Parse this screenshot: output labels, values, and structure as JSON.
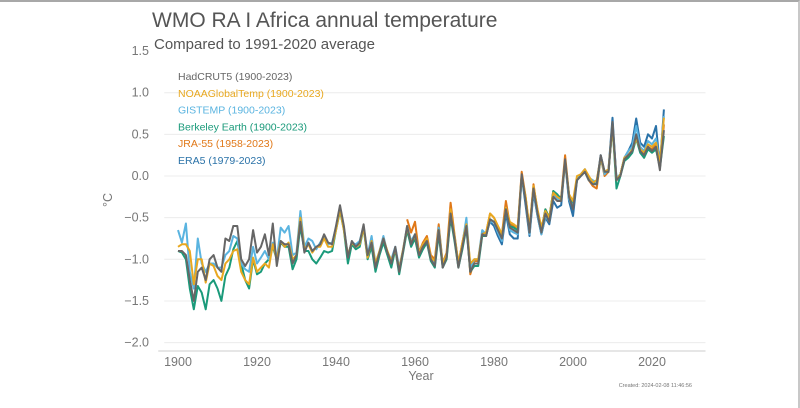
{
  "chart_data": {
    "type": "line",
    "title": "WMO RA I Africa annual temperature",
    "subtitle": "Compared to 1991-2020 average",
    "xlabel": "Year",
    "ylabel": "°C",
    "xlim": [
      1895,
      2030
    ],
    "ylim": [
      -2.0,
      1.5
    ],
    "xticks": [
      1900,
      1920,
      1940,
      1960,
      1980,
      2000,
      2020
    ],
    "yticks": [
      -2.0,
      -1.5,
      -1.0,
      -0.5,
      0.0,
      0.5,
      1.0,
      1.5
    ],
    "ytick_labels": [
      "−2.0",
      "−1.5",
      "−1.0",
      "−0.5",
      "0.0",
      "0.5",
      "1.0",
      "1.5"
    ],
    "grid": "horizontal",
    "legend_placement": "top-left",
    "footnote": "Created: 2024-02-08 11:46:56",
    "series": [
      {
        "name": "HadCRUT5 (1900-2023)",
        "color": "#666666",
        "start": 1900,
        "values": [
          -0.9,
          -0.9,
          -0.95,
          -1.25,
          -1.5,
          -1.15,
          -1.1,
          -1.25,
          -1.0,
          -0.95,
          -1.1,
          -1.15,
          -0.75,
          -0.78,
          -0.6,
          -0.6,
          -1.0,
          -1.08,
          -1.0,
          -0.65,
          -0.92,
          -0.85,
          -0.7,
          -0.95,
          -0.57,
          -1.08,
          -0.78,
          -0.82,
          -0.82,
          -1.05,
          -0.95,
          -0.55,
          -0.92,
          -0.8,
          -0.9,
          -0.85,
          -0.82,
          -0.7,
          -0.8,
          -0.82,
          -0.6,
          -0.35,
          -0.6,
          -0.98,
          -0.78,
          -0.85,
          -0.8,
          -0.58,
          -0.95,
          -0.8,
          -1.1,
          -0.92,
          -0.75,
          -0.92,
          -1.05,
          -0.85,
          -1.15,
          -0.9,
          -0.6,
          -0.82,
          -0.7,
          -0.95,
          -0.85,
          -0.78,
          -1.0,
          -1.08,
          -0.65,
          -1.1,
          -0.98,
          -0.45,
          -0.75,
          -1.1,
          -0.85,
          -0.6,
          -1.15,
          -1.05,
          -1.05,
          -0.7,
          -0.72,
          -0.52,
          -0.55,
          -0.65,
          -0.75,
          -0.4,
          -0.62,
          -0.65,
          -0.68,
          0.02,
          -0.3,
          -0.68,
          -0.15,
          -0.45,
          -0.68,
          -0.45,
          -0.55,
          -0.25,
          -0.3,
          -0.3,
          0.2,
          -0.25,
          -0.4,
          -0.05,
          0.0,
          0.05,
          -0.05,
          -0.1,
          -0.1,
          0.25,
          0.05,
          0.05,
          0.65,
          -0.05,
          0.0,
          0.2,
          0.25,
          0.3,
          0.5,
          0.3,
          0.25,
          0.35,
          0.3,
          0.35,
          0.07,
          0.55
        ]
      },
      {
        "name": "NOAAGlobalTemp (1900-2023)",
        "color": "#e8a820",
        "start": 1900,
        "values": [
          -0.85,
          -0.82,
          -0.82,
          -0.9,
          -1.3,
          -1.0,
          -1.0,
          -1.28,
          -1.05,
          -1.08,
          -1.2,
          -1.25,
          -1.05,
          -1.0,
          -0.9,
          -0.88,
          -1.15,
          -1.25,
          -1.3,
          -0.98,
          -1.15,
          -1.1,
          -1.05,
          -1.1,
          -0.82,
          -1.0,
          -0.78,
          -0.85,
          -0.8,
          -1.0,
          -0.95,
          -0.5,
          -0.88,
          -0.82,
          -0.92,
          -0.85,
          -0.85,
          -0.75,
          -0.85,
          -0.85,
          -0.65,
          -0.4,
          -0.65,
          -0.95,
          -0.8,
          -0.85,
          -0.82,
          -0.62,
          -0.98,
          -0.78,
          -1.05,
          -0.9,
          -0.75,
          -0.9,
          -1.02,
          -0.88,
          -1.12,
          -0.88,
          -0.62,
          -0.8,
          -0.72,
          -0.92,
          -0.82,
          -0.75,
          -0.98,
          -1.02,
          -0.65,
          -1.05,
          -0.95,
          -0.4,
          -0.72,
          -1.05,
          -0.8,
          -0.58,
          -1.05,
          -1.0,
          -1.0,
          -0.7,
          -0.68,
          -0.45,
          -0.5,
          -0.6,
          -0.7,
          -0.38,
          -0.55,
          -0.58,
          -0.62,
          0.0,
          -0.25,
          -0.62,
          -0.12,
          -0.4,
          -0.62,
          -0.42,
          -0.5,
          -0.2,
          -0.25,
          -0.28,
          0.18,
          -0.22,
          -0.3,
          0.0,
          0.02,
          0.08,
          0.0,
          -0.08,
          -0.05,
          0.22,
          0.05,
          0.08,
          0.6,
          -0.05,
          0.02,
          0.22,
          0.25,
          0.32,
          0.45,
          0.32,
          0.28,
          0.38,
          0.35,
          0.4,
          0.15,
          0.7
        ]
      },
      {
        "name": "GISTEMP (1900-2023)",
        "color": "#5ab4e0",
        "start": 1900,
        "values": [
          -0.65,
          -0.8,
          -0.57,
          -1.15,
          -1.35,
          -0.75,
          -1.05,
          -1.15,
          -1.05,
          -1.05,
          -1.1,
          -1.1,
          -0.95,
          -0.9,
          -0.72,
          -0.75,
          -1.05,
          -1.12,
          -1.15,
          -0.85,
          -1.05,
          -0.98,
          -0.9,
          -1.0,
          -0.8,
          -1.0,
          -0.62,
          -0.68,
          -0.6,
          -0.95,
          -0.92,
          -0.42,
          -0.85,
          -0.75,
          -0.78,
          -0.88,
          -0.8,
          -0.72,
          -0.82,
          -0.8,
          -0.62,
          -0.4,
          -0.62,
          -0.95,
          -0.8,
          -0.82,
          -0.78,
          -0.6,
          -0.95,
          -0.72,
          -1.05,
          -0.9,
          -0.72,
          -0.92,
          -1.0,
          -0.85,
          -1.1,
          -0.88,
          -0.6,
          -0.78,
          -0.7,
          -0.92,
          -0.82,
          -0.78,
          -0.98,
          -1.05,
          -0.62,
          -1.05,
          -0.95,
          -0.45,
          -0.72,
          -1.05,
          -0.82,
          -0.5,
          -1.1,
          -1.0,
          -1.0,
          -0.65,
          -0.7,
          -0.55,
          -0.55,
          -0.68,
          -0.78,
          -0.38,
          -0.65,
          -0.68,
          -0.7,
          0.0,
          -0.3,
          -0.7,
          -0.18,
          -0.48,
          -0.7,
          -0.48,
          -0.55,
          -0.22,
          -0.28,
          -0.28,
          0.18,
          -0.28,
          -0.38,
          -0.02,
          0.02,
          0.08,
          -0.02,
          -0.05,
          -0.08,
          0.22,
          0.02,
          0.08,
          0.62,
          -0.02,
          0.02,
          0.22,
          0.3,
          0.35,
          0.6,
          0.35,
          0.3,
          0.42,
          0.38,
          0.45,
          0.15,
          0.72
        ]
      },
      {
        "name": "Berkeley Earth (1900-2023)",
        "color": "#1a9a7a",
        "start": 1900,
        "values": [
          -0.9,
          -0.92,
          -1.0,
          -1.35,
          -1.6,
          -1.32,
          -1.4,
          -1.6,
          -1.3,
          -1.25,
          -1.35,
          -1.5,
          -1.2,
          -1.1,
          -0.88,
          -0.78,
          -1.05,
          -1.25,
          -1.35,
          -1.0,
          -1.18,
          -1.15,
          -1.05,
          -1.0,
          -0.85,
          -1.0,
          -0.8,
          -0.85,
          -0.85,
          -1.12,
          -1.0,
          -0.6,
          -0.9,
          -0.9,
          -1.0,
          -1.05,
          -0.98,
          -0.9,
          -0.92,
          -0.9,
          -0.65,
          -0.42,
          -0.65,
          -1.05,
          -0.82,
          -0.88,
          -0.85,
          -0.62,
          -1.0,
          -0.85,
          -1.15,
          -0.95,
          -0.8,
          -0.95,
          -1.1,
          -0.88,
          -1.18,
          -0.92,
          -0.65,
          -0.85,
          -0.75,
          -0.98,
          -0.88,
          -0.8,
          -1.02,
          -1.1,
          -0.7,
          -1.1,
          -1.0,
          -0.5,
          -0.78,
          -1.1,
          -0.88,
          -0.62,
          -1.15,
          -1.08,
          -1.08,
          -0.72,
          -0.72,
          -0.52,
          -0.55,
          -0.62,
          -0.72,
          -0.42,
          -0.6,
          -0.62,
          -0.65,
          0.0,
          -0.28,
          -0.65,
          -0.15,
          -0.42,
          -0.65,
          -0.4,
          -0.5,
          -0.18,
          -0.22,
          -0.28,
          0.18,
          -0.22,
          -0.32,
          -0.05,
          0.0,
          0.05,
          -0.05,
          -0.08,
          -0.1,
          0.22,
          0.05,
          0.05,
          0.6,
          -0.15,
          0.0,
          0.18,
          0.22,
          0.28,
          0.45,
          0.28,
          0.22,
          0.32,
          0.28,
          0.32,
          0.1,
          0.48
        ]
      },
      {
        "name": "JRA-55 (1958-2023)",
        "color": "#e07818",
        "start": 1958,
        "values": [
          -0.52,
          -0.68,
          -0.55,
          -0.92,
          -0.8,
          -0.72,
          -0.95,
          -1.0,
          -0.58,
          -1.05,
          -0.92,
          -0.32,
          -0.7,
          -1.05,
          -0.8,
          -0.55,
          -1.18,
          -1.02,
          -1.02,
          -0.68,
          -0.68,
          -0.45,
          -0.5,
          -0.6,
          -0.7,
          -0.3,
          -0.58,
          -0.6,
          -0.62,
          0.05,
          -0.25,
          -0.65,
          -0.1,
          -0.42,
          -0.65,
          -0.4,
          -0.5,
          -0.18,
          -0.25,
          -0.25,
          0.25,
          -0.22,
          -0.35,
          -0.02,
          0.02,
          0.08,
          -0.05,
          -0.12,
          -0.15,
          0.22,
          0.0,
          0.05,
          0.62,
          -0.05,
          0.02,
          0.22,
          0.25,
          0.3,
          0.48,
          0.3,
          0.22,
          0.35,
          0.32,
          0.38,
          0.1,
          0.62
        ]
      },
      {
        "name": "ERA5 (1979-2023)",
        "color": "#2a72a8",
        "start": 1979,
        "values": [
          -0.55,
          -0.6,
          -0.72,
          -0.82,
          -0.45,
          -0.7,
          -0.75,
          -0.75,
          0.0,
          -0.35,
          -0.72,
          -0.2,
          -0.48,
          -0.7,
          -0.5,
          -0.58,
          -0.3,
          -0.38,
          -0.35,
          0.18,
          -0.3,
          -0.48,
          -0.05,
          0.02,
          0.05,
          -0.05,
          -0.1,
          -0.08,
          0.25,
          0.05,
          0.08,
          0.7,
          -0.05,
          0.02,
          0.22,
          0.3,
          0.4,
          0.69,
          0.4,
          0.35,
          0.5,
          0.45,
          0.6,
          0.12,
          0.8
        ]
      }
    ]
  }
}
